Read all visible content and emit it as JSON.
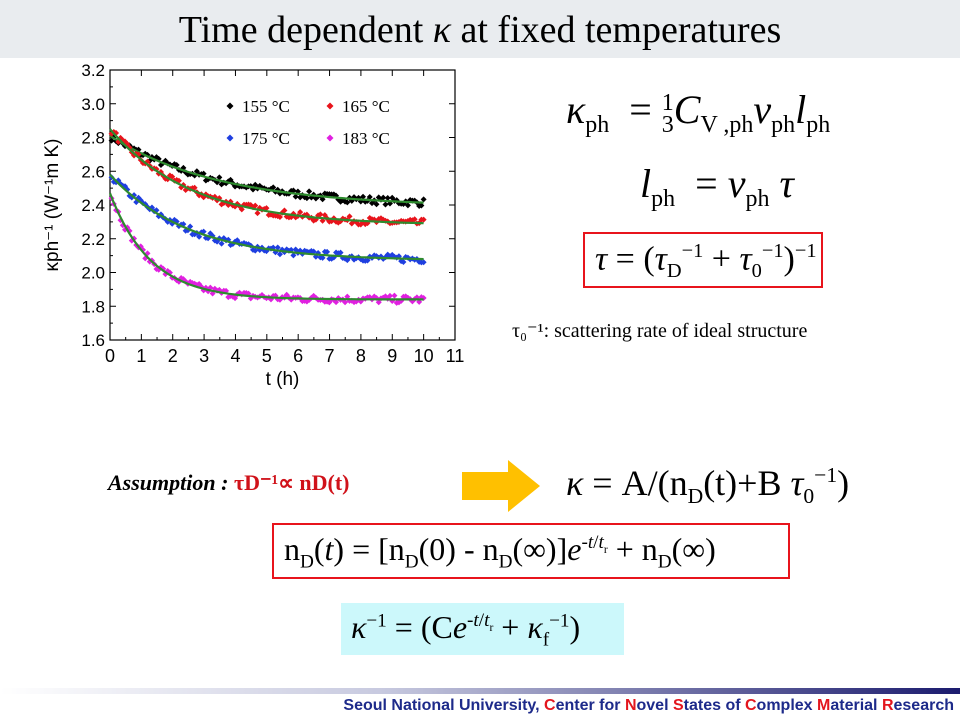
{
  "slide": {
    "title_prefix": "Time dependent",
    "title_symbol": "κ",
    "title_suffix": "at fixed temperatures",
    "note": "τ₀⁻¹: scattering rate of ideal structure",
    "assumption_label": "Assumption :",
    "assumption_eq": "τD⁻¹∝ nD(t)",
    "footer_parts": [
      {
        "t": "Seoul National University, ",
        "red": false
      },
      {
        "t": "C",
        "red": true
      },
      {
        "t": "enter for ",
        "red": false
      },
      {
        "t": "N",
        "red": true
      },
      {
        "t": "ovel ",
        "red": false
      },
      {
        "t": "S",
        "red": true
      },
      {
        "t": "tates of ",
        "red": false
      },
      {
        "t": "C",
        "red": true
      },
      {
        "t": "omplex ",
        "red": false
      },
      {
        "t": "M",
        "red": true
      },
      {
        "t": "aterial ",
        "red": false
      },
      {
        "t": "R",
        "red": true
      },
      {
        "t": "esearch",
        "red": false
      }
    ]
  },
  "equations": {
    "eq1": "κph = ⅓ CV,ph vph lph",
    "eq2": "lph = vph τ",
    "eq3": "τ = (τD⁻¹ + τ0⁻¹)⁻¹",
    "eq4": "κ = A/(nD(t)+B τ0⁻¹)",
    "eq5": "nD(t) = [nD(0) - nD(∞)]e^(-t/tr) + nD(∞)",
    "eq6": "κ⁻¹ = (Ce^(-t/tr) + κf⁻¹)"
  },
  "chart_data": {
    "type": "scatter",
    "title": "",
    "xlabel": "t (h)",
    "ylabel": "κph⁻¹ (W⁻¹m K)",
    "xlim": [
      0,
      11
    ],
    "ylim": [
      1.6,
      3.2
    ],
    "xticks": [
      0,
      1,
      2,
      3,
      4,
      5,
      6,
      7,
      8,
      9,
      10,
      11
    ],
    "yticks": [
      1.6,
      1.8,
      2.0,
      2.2,
      2.4,
      2.6,
      2.8,
      3.0,
      3.2
    ],
    "ytick_labels": [
      "1.6",
      "1.8",
      "2.0",
      "2.2",
      "2.4",
      "2.6",
      "2.8",
      "3.0",
      "3.2"
    ],
    "grid": false,
    "legend_position": "top-right",
    "fit_color": "#2e8b2e",
    "series": [
      {
        "name": "155 °C",
        "color": "#000000",
        "fit": {
          "a": 2.39,
          "b": 0.42,
          "tau": 3.5
        },
        "sampled": {
          "x": [
            0.1,
            1.0,
            2.0,
            3.0,
            4.0,
            5.0,
            6.0,
            7.0,
            8.0,
            9.0,
            10.0
          ],
          "y": [
            2.8,
            2.71,
            2.63,
            2.57,
            2.53,
            2.5,
            2.47,
            2.45,
            2.44,
            2.43,
            2.42
          ]
        }
      },
      {
        "name": "165 °C",
        "color": "#e8141c",
        "fit": {
          "a": 2.28,
          "b": 0.57,
          "tau": 2.6
        },
        "sampled": {
          "x": [
            0.1,
            1.0,
            2.0,
            3.0,
            4.0,
            5.0,
            6.0,
            7.0,
            8.0,
            9.0,
            10.0
          ],
          "y": [
            2.83,
            2.67,
            2.55,
            2.47,
            2.41,
            2.37,
            2.34,
            2.32,
            2.3,
            2.29,
            2.29
          ]
        }
      },
      {
        "name": "175 °C",
        "color": "#1f3fe0",
        "fit": {
          "a": 2.07,
          "b": 0.51,
          "tau": 2.5
        },
        "sampled": {
          "x": [
            0.1,
            1.0,
            2.0,
            3.0,
            4.0,
            5.0,
            6.0,
            7.0,
            8.0,
            9.0,
            10.0
          ],
          "y": [
            2.56,
            2.42,
            2.31,
            2.24,
            2.19,
            2.15,
            2.13,
            2.11,
            2.09,
            2.09,
            2.08
          ]
        }
      },
      {
        "name": "183 °C",
        "color": "#e020e0",
        "fit": {
          "a": 1.84,
          "b": 0.63,
          "tau": 1.3
        },
        "sampled": {
          "x": [
            0.1,
            1.0,
            2.0,
            3.0,
            4.0,
            5.0,
            6.0,
            7.0,
            8.0,
            9.0,
            10.0
          ],
          "y": [
            2.44,
            2.14,
            1.97,
            1.9,
            1.87,
            1.85,
            1.84,
            1.84,
            1.84,
            1.84,
            1.84
          ]
        }
      }
    ]
  }
}
